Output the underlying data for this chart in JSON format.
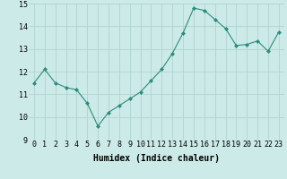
{
  "x": [
    0,
    1,
    2,
    3,
    4,
    5,
    6,
    7,
    8,
    9,
    10,
    11,
    12,
    13,
    14,
    15,
    16,
    17,
    18,
    19,
    20,
    21,
    22,
    23
  ],
  "y": [
    11.5,
    12.1,
    11.5,
    11.3,
    11.2,
    10.6,
    9.6,
    10.2,
    10.5,
    10.8,
    11.1,
    11.6,
    12.1,
    12.8,
    13.7,
    14.8,
    14.7,
    14.3,
    13.9,
    13.15,
    13.2,
    13.35,
    12.9,
    13.75
  ],
  "xlabel": "Humidex (Indice chaleur)",
  "ylim": [
    9,
    15
  ],
  "xlim": [
    -0.5,
    23.5
  ],
  "yticks": [
    9,
    10,
    11,
    12,
    13,
    14,
    15
  ],
  "xticks": [
    0,
    1,
    2,
    3,
    4,
    5,
    6,
    7,
    8,
    9,
    10,
    11,
    12,
    13,
    14,
    15,
    16,
    17,
    18,
    19,
    20,
    21,
    22,
    23
  ],
  "line_color": "#2d8c7a",
  "marker": "D",
  "marker_size": 2.0,
  "bg_color": "#cceae7",
  "grid_color": "#b0d4d0",
  "tick_fontsize": 6,
  "xlabel_fontsize": 7
}
